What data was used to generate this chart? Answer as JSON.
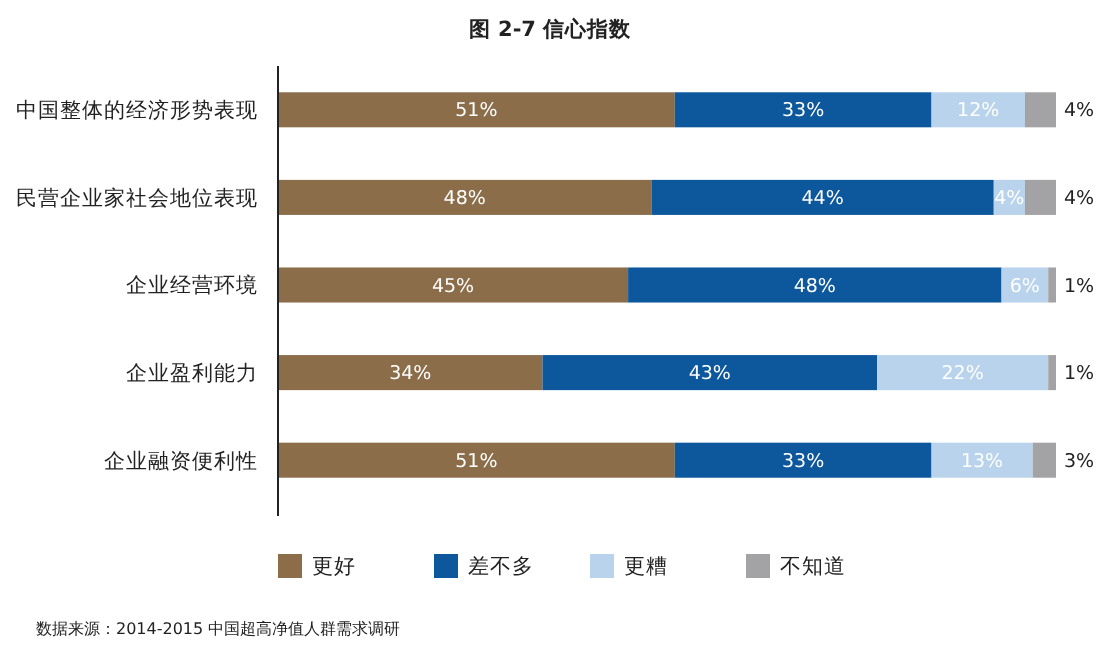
{
  "chart_data": {
    "type": "bar",
    "orientation": "horizontal",
    "stacked": true,
    "title": "图 2-7 信心指数",
    "categories": [
      "中国整体的经济形势表现",
      "民营企业家社会地位表现",
      "企业经营环境",
      "企业盈利能力",
      "企业融资便利性"
    ],
    "series": [
      {
        "name": "更好",
        "color": "#8b6d4a",
        "values": [
          51,
          48,
          45,
          34,
          51
        ],
        "value_labels": [
          "51%",
          "48%",
          "45%",
          "34%",
          "51%"
        ]
      },
      {
        "name": "差不多",
        "color": "#0d579c",
        "values": [
          33,
          44,
          48,
          43,
          33
        ],
        "value_labels": [
          "33%",
          "44%",
          "48%",
          "43%",
          "33%"
        ]
      },
      {
        "name": "更糟",
        "color": "#b9d3ec",
        "values": [
          12,
          4,
          6,
          22,
          13
        ],
        "value_labels": [
          "12%",
          "4%",
          "6%",
          "22%",
          "13%"
        ]
      },
      {
        "name": "不知道",
        "color": "#a3a3a6",
        "values": [
          4,
          4,
          1,
          1,
          3
        ],
        "value_labels": [
          "4%",
          "4%",
          "1%",
          "1%",
          "3%"
        ]
      }
    ],
    "legend": "bottom",
    "grid": false,
    "annotations": [
      "数据来源：2014-2015 中国超高净值人群需求调研"
    ]
  }
}
